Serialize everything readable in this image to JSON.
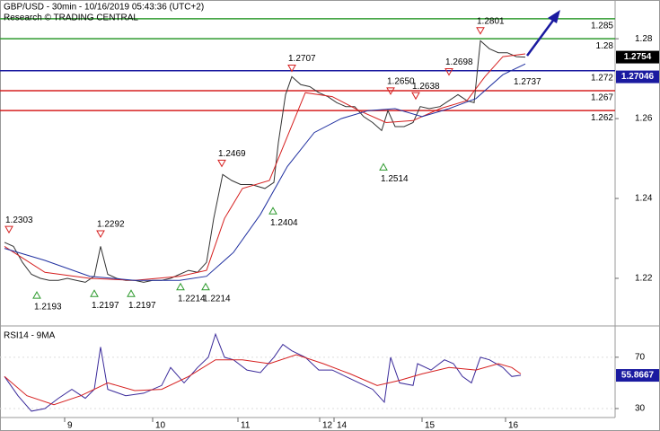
{
  "chart_data": [
    {
      "type": "line",
      "title": "GBP/USD - 30min - 10/16/2019 05:43:36 (UTC+2)",
      "subtitle": "Research © TRADING CENTRAL",
      "xlim": [
        0,
        685
      ],
      "ylim": [
        1.2083,
        1.2897
      ],
      "yticks": [
        1.22,
        1.24,
        1.26,
        1.28
      ],
      "series": [
        {
          "color": "#333333",
          "x": [
            5,
            15,
            25,
            35,
            45,
            55,
            65,
            75,
            85,
            95,
            105,
            112,
            120,
            130,
            140,
            150,
            160,
            170,
            180,
            190,
            200,
            210,
            220,
            230,
            238,
            248,
            258,
            268,
            280,
            295,
            305,
            310,
            318,
            325,
            335,
            345,
            355,
            365,
            375,
            385,
            395,
            405,
            415,
            425,
            432,
            440,
            450,
            460,
            468,
            478,
            490,
            500,
            510,
            520,
            528,
            535,
            545,
            555,
            565,
            575,
            585
          ],
          "values": [
            1.229,
            1.228,
            1.224,
            1.221,
            1.22,
            1.2195,
            1.2195,
            1.22,
            1.2195,
            1.219,
            1.2205,
            1.228,
            1.221,
            1.22,
            1.2195,
            1.2195,
            1.219,
            1.2195,
            1.2195,
            1.22,
            1.221,
            1.222,
            1.2215,
            1.224,
            1.235,
            1.246,
            1.2445,
            1.2435,
            1.2435,
            1.2425,
            1.244,
            1.254,
            1.266,
            1.2705,
            1.2685,
            1.268,
            1.2665,
            1.2655,
            1.264,
            1.263,
            1.263,
            1.2605,
            1.259,
            1.257,
            1.262,
            1.258,
            1.258,
            1.259,
            1.263,
            1.2625,
            1.263,
            1.2645,
            1.266,
            1.2645,
            1.264,
            1.2795,
            1.2775,
            1.2765,
            1.2765,
            1.2755,
            1.2754
          ]
        },
        {
          "color": "#d62020",
          "x": [
            5,
            50,
            100,
            150,
            200,
            230,
            250,
            270,
            300,
            320,
            340,
            370,
            400,
            430,
            460,
            490,
            520,
            540,
            560,
            585
          ],
          "values": [
            1.228,
            1.2215,
            1.22,
            1.2195,
            1.2205,
            1.222,
            1.235,
            1.2425,
            1.2445,
            1.2555,
            1.2665,
            1.2655,
            1.262,
            1.259,
            1.2595,
            1.2625,
            1.2645,
            1.2705,
            1.2755,
            1.2762
          ]
        },
        {
          "color": "#2030a0",
          "x": [
            5,
            50,
            100,
            150,
            200,
            230,
            260,
            290,
            320,
            350,
            380,
            410,
            440,
            470,
            500,
            530,
            560,
            585
          ],
          "values": [
            1.2275,
            1.2245,
            1.2205,
            1.2195,
            1.2195,
            1.2205,
            1.2265,
            1.236,
            1.248,
            1.2565,
            1.26,
            1.262,
            1.2625,
            1.2605,
            1.2625,
            1.265,
            1.271,
            1.2737
          ]
        }
      ],
      "levels": [
        {
          "value": 1.285,
          "color": "#2e9a2e"
        },
        {
          "value": 1.28,
          "color": "#2e9a2e"
        },
        {
          "value": 1.272,
          "color": "#1a1aa0"
        },
        {
          "value": 1.267,
          "color": "#d62020"
        },
        {
          "value": 1.262,
          "color": "#d62020"
        }
      ],
      "price_tags": [
        {
          "value": 1.2754,
          "color": "#000000"
        },
        {
          "value": 1.27046,
          "color": "#1a1aa0"
        }
      ],
      "annotations": [
        {
          "x": 10,
          "value": 1.2303,
          "dir": "high"
        },
        {
          "x": 41,
          "value": 1.2193,
          "dir": "low"
        },
        {
          "x": 105,
          "value": 1.2197,
          "dir": "low"
        },
        {
          "x": 112,
          "value": 1.2292,
          "dir": "high"
        },
        {
          "x": 146,
          "value": 1.2197,
          "dir": "low"
        },
        {
          "x": 201,
          "value": 1.2214,
          "dir": "low"
        },
        {
          "x": 229,
          "value": 1.2214,
          "dir": "low"
        },
        {
          "x": 247,
          "value": 1.2469,
          "dir": "high"
        },
        {
          "x": 304,
          "value": 1.2404,
          "dir": "low"
        },
        {
          "x": 325,
          "value": 1.2707,
          "dir": "high"
        },
        {
          "x": 427,
          "value": 1.2514,
          "dir": "low"
        },
        {
          "x": 435,
          "value": 1.265,
          "label": "1.2650",
          "dir": "high"
        },
        {
          "x": 463,
          "value": 1.2638,
          "dir": "high"
        },
        {
          "x": 500,
          "value": 1.2698,
          "dir": "high"
        },
        {
          "x": 535,
          "value": 1.2801,
          "dir": "high"
        },
        {
          "x": 572,
          "value": 1.2737,
          "dir": "label"
        }
      ]
    },
    {
      "type": "line",
      "title": "RSI14 - 9MA",
      "xlim": [
        0,
        685
      ],
      "xticks": [
        {
          "value": 72,
          "label": "9"
        },
        {
          "value": 170,
          "label": "10"
        },
        {
          "value": 265,
          "label": "11"
        },
        {
          "value": 356,
          "label": "12"
        },
        {
          "value": 372,
          "label": "14"
        },
        {
          "value": 470,
          "label": "15"
        },
        {
          "value": 563,
          "label": "16"
        }
      ],
      "ylim": [
        23,
        93
      ],
      "yticks": [
        30,
        70
      ],
      "series": [
        {
          "color": "#3a2a9a",
          "x": [
            5,
            20,
            35,
            50,
            65,
            80,
            95,
            105,
            112,
            120,
            140,
            160,
            180,
            190,
            205,
            220,
            232,
            240,
            250,
            260,
            275,
            290,
            305,
            315,
            325,
            340,
            355,
            370,
            385,
            400,
            415,
            428,
            435,
            445,
            460,
            465,
            480,
            495,
            505,
            515,
            525,
            535,
            545,
            560,
            570,
            580
          ],
          "values": [
            55,
            40,
            28,
            30,
            38,
            45,
            38,
            45,
            78,
            45,
            40,
            42,
            48,
            62,
            50,
            62,
            70,
            88,
            70,
            68,
            60,
            58,
            70,
            80,
            75,
            70,
            60,
            60,
            55,
            50,
            45,
            35,
            70,
            50,
            48,
            65,
            60,
            68,
            65,
            55,
            50,
            70,
            68,
            62,
            55,
            56
          ]
        },
        {
          "color": "#d62020",
          "x": [
            5,
            30,
            60,
            90,
            120,
            150,
            180,
            210,
            240,
            270,
            300,
            330,
            360,
            390,
            420,
            445,
            470,
            500,
            530,
            555,
            570,
            580
          ],
          "values": [
            55,
            40,
            33,
            40,
            50,
            44,
            45,
            55,
            68,
            68,
            65,
            72,
            65,
            57,
            48,
            52,
            57,
            62,
            60,
            65,
            62,
            57
          ]
        }
      ],
      "value_tags": [
        {
          "value": 55.8667,
          "color": "#1a1aa0"
        }
      ]
    }
  ]
}
